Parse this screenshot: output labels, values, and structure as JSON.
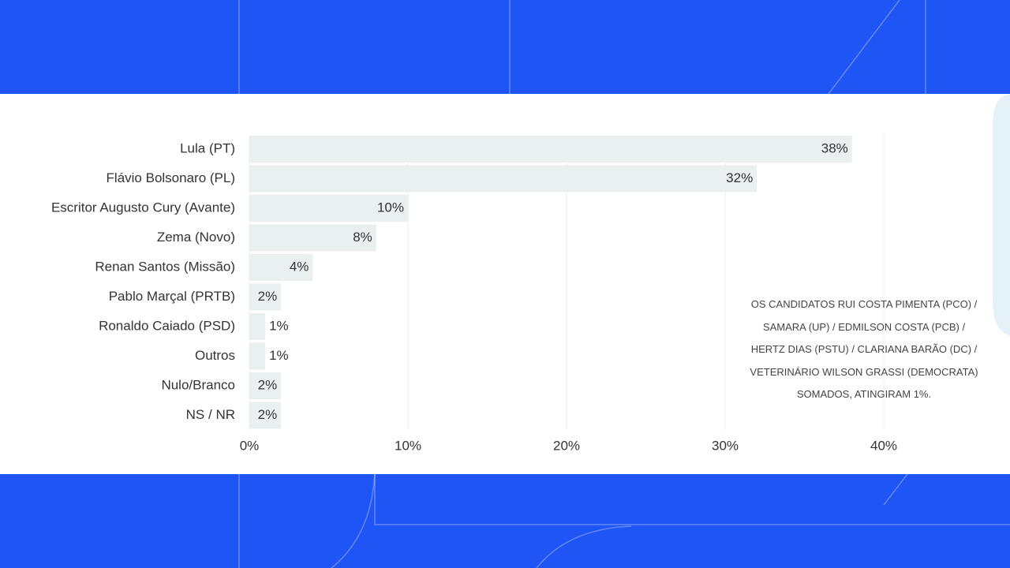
{
  "chart_data": {
    "type": "bar",
    "orientation": "horizontal",
    "categories": [
      "Lula (PT)",
      "Flávio Bolsonaro (PL)",
      "Escritor Augusto Cury (Avante)",
      "Zema (Novo)",
      "Renan Santos (Missão)",
      "Pablo Marçal (PRTB)",
      "Ronaldo Caiado (PSD)",
      "Outros",
      "Nulo/Branco",
      "NS / NR"
    ],
    "values": [
      38,
      32,
      10,
      8,
      4,
      2,
      1,
      1,
      2,
      2
    ],
    "value_labels": [
      "38%",
      "32%",
      "10%",
      "8%",
      "4%",
      "2%",
      "1%",
      "1%",
      "2%",
      "2%"
    ],
    "color": "#eaefef",
    "xlim": [
      0,
      46
    ],
    "xticks": [
      {
        "value": 0,
        "label": "0%"
      },
      {
        "value": 10,
        "label": "10%"
      },
      {
        "value": 20,
        "label": "20%"
      },
      {
        "value": 30,
        "label": "30%"
      },
      {
        "value": 40,
        "label": "40%"
      }
    ],
    "grid": true,
    "annotation": "OS CANDIDATOS RUI COSTA PIMENTA (PCO) / SAMARA (UP) / EDMILSON COSTA (PCB) / HERTZ DIAS (PSTU) / CLARIANA BARÃO (DC) / VETERINÁRIO WILSON GRASSI (DEMOCRATA) SOMADOS, ATINGIRAM 1%."
  }
}
